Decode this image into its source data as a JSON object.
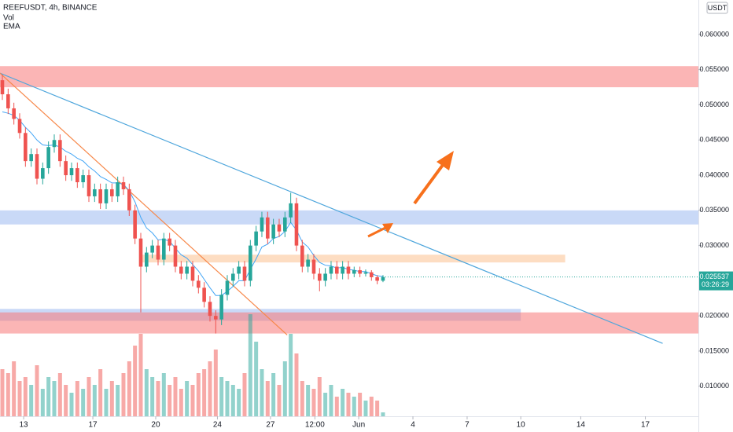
{
  "chart_data": {
    "type": "candlestick",
    "title": "REEFUSDT, 4h, BINANCE",
    "indicators": [
      "Vol",
      "EMA"
    ],
    "currency": "USDT",
    "countdown": "03:26:29",
    "up_color": "#26a69a",
    "down_color": "#ef5350",
    "ema_color": "#42a5f5",
    "open": [
      0.0535,
      0.0515,
      0.0495,
      0.048,
      0.046,
      0.042,
      0.043,
      0.0395,
      0.041,
      0.044,
      0.045,
      0.042,
      0.04,
      0.041,
      0.039,
      0.04,
      0.037,
      0.038,
      0.036,
      0.038,
      0.037,
      0.039,
      0.038,
      0.035,
      0.031,
      0.027,
      0.029,
      0.03,
      0.028,
      0.031,
      0.03,
      0.027,
      0.026,
      0.027,
      0.025,
      0.024,
      0.022,
      0.02,
      0.0195,
      0.023,
      0.025,
      0.026,
      0.027,
      0.025,
      0.03,
      0.032,
      0.034,
      0.031,
      0.033,
      0.032,
      0.034,
      0.036,
      0.03,
      0.027,
      0.028,
      0.026,
      0.025,
      0.026,
      0.027,
      0.026,
      0.027,
      0.026,
      0.0265,
      0.026,
      0.0262,
      0.0255,
      0.025
    ],
    "high": [
      0.0543,
      0.0523,
      0.0503,
      0.0488,
      0.0468,
      0.0438,
      0.0438,
      0.0418,
      0.0448,
      0.0458,
      0.0458,
      0.0428,
      0.0418,
      0.0418,
      0.0408,
      0.0408,
      0.0388,
      0.0388,
      0.0388,
      0.0388,
      0.0398,
      0.0398,
      0.0388,
      0.0358,
      0.0318,
      0.0298,
      0.0308,
      0.0308,
      0.0318,
      0.0318,
      0.0308,
      0.0278,
      0.0278,
      0.0278,
      0.0258,
      0.0248,
      0.0228,
      0.0208,
      0.0238,
      0.0258,
      0.0268,
      0.0278,
      0.0278,
      0.0308,
      0.0328,
      0.0348,
      0.0348,
      0.0338,
      0.0338,
      0.0348,
      0.0375,
      0.0368,
      0.0308,
      0.0288,
      0.0288,
      0.0268,
      0.0268,
      0.0278,
      0.0278,
      0.0278,
      0.0278,
      0.027,
      0.027,
      0.0266,
      0.0265,
      0.0258,
      0.0258
    ],
    "low": [
      0.0507,
      0.0487,
      0.0472,
      0.0452,
      0.0412,
      0.0412,
      0.0387,
      0.0387,
      0.0402,
      0.0432,
      0.0412,
      0.0392,
      0.0392,
      0.0382,
      0.0382,
      0.0362,
      0.0362,
      0.0352,
      0.0352,
      0.0362,
      0.0362,
      0.0372,
      0.0342,
      0.0302,
      0.0205,
      0.0262,
      0.0282,
      0.0272,
      0.0272,
      0.0292,
      0.0262,
      0.0252,
      0.0252,
      0.0242,
      0.0232,
      0.0212,
      0.0192,
      0.0175,
      0.0187,
      0.0222,
      0.0242,
      0.0252,
      0.0242,
      0.0242,
      0.0292,
      0.0312,
      0.0302,
      0.0302,
      0.0312,
      0.0312,
      0.0332,
      0.0292,
      0.0262,
      0.0262,
      0.0252,
      0.0235,
      0.0242,
      0.0252,
      0.0252,
      0.0252,
      0.0252,
      0.0255,
      0.0255,
      0.0256,
      0.025,
      0.0245,
      0.0248
    ],
    "close": [
      0.0515,
      0.0495,
      0.048,
      0.046,
      0.042,
      0.043,
      0.0395,
      0.041,
      0.044,
      0.045,
      0.042,
      0.04,
      0.041,
      0.039,
      0.04,
      0.037,
      0.038,
      0.036,
      0.038,
      0.037,
      0.039,
      0.038,
      0.035,
      0.031,
      0.027,
      0.029,
      0.03,
      0.028,
      0.031,
      0.03,
      0.027,
      0.026,
      0.027,
      0.025,
      0.024,
      0.022,
      0.02,
      0.0195,
      0.023,
      0.025,
      0.026,
      0.027,
      0.025,
      0.03,
      0.032,
      0.034,
      0.031,
      0.033,
      0.032,
      0.034,
      0.036,
      0.03,
      0.027,
      0.028,
      0.026,
      0.025,
      0.026,
      0.027,
      0.026,
      0.027,
      0.026,
      0.0265,
      0.026,
      0.0262,
      0.0255,
      0.025,
      0.025537
    ],
    "ema": [
      0.049,
      0.0488,
      0.0485,
      0.0478,
      0.0468,
      0.046,
      0.045,
      0.0443,
      0.0442,
      0.0443,
      0.044,
      0.0434,
      0.043,
      0.0424,
      0.042,
      0.0412,
      0.0406,
      0.0398,
      0.0394,
      0.0389,
      0.0389,
      0.0387,
      0.0378,
      0.0362,
      0.034,
      0.0325,
      0.0318,
      0.0308,
      0.0309,
      0.0306,
      0.0296,
      0.0287,
      0.0282,
      0.0273,
      0.0264,
      0.0252,
      0.024,
      0.0229,
      0.0229,
      0.0235,
      0.0242,
      0.025,
      0.025,
      0.0266,
      0.0281,
      0.0298,
      0.0302,
      0.031,
      0.0313,
      0.032,
      0.0333,
      0.0322,
      0.0305,
      0.0298,
      0.0286,
      0.0276,
      0.0272,
      0.0271,
      0.0268,
      0.0269,
      0.0266,
      0.0265,
      0.0263,
      0.0263,
      0.026,
      0.0257,
      0.0256
    ],
    "volume": [
      60,
      55,
      70,
      45,
      50,
      40,
      65,
      35,
      50,
      45,
      55,
      40,
      30,
      45,
      35,
      50,
      40,
      60,
      35,
      45,
      40,
      55,
      70,
      90,
      105,
      60,
      50,
      45,
      55,
      40,
      50,
      35,
      45,
      40,
      55,
      60,
      70,
      85,
      50,
      45,
      40,
      35,
      55,
      130,
      95,
      60,
      45,
      55,
      40,
      70,
      105,
      80,
      45,
      40,
      35,
      50,
      30,
      40,
      25,
      35,
      30,
      25,
      30,
      20,
      25,
      20,
      5
    ],
    "vlim": [
      0,
      530
    ],
    "xlim": [
      0,
      121.1
    ],
    "ylim": [
      0.0035,
      0.0649
    ],
    "yticks": [
      {
        "value": 0.06,
        "label": "0.060000"
      },
      {
        "value": 0.055,
        "label": "0.055000"
      },
      {
        "value": 0.05,
        "label": "0.050000"
      },
      {
        "value": 0.045,
        "label": "0.045000"
      },
      {
        "value": 0.04,
        "label": "0.040000"
      },
      {
        "value": 0.035,
        "label": "0.035000"
      },
      {
        "value": 0.03,
        "label": "0.030000"
      },
      {
        "value": 0.02,
        "label": "0.020000"
      },
      {
        "value": 0.015,
        "label": "0.015000"
      },
      {
        "value": 0.01,
        "label": "0.010000"
      }
    ],
    "xticks": [
      {
        "value": 4.1,
        "label": "13"
      },
      {
        "value": 16.1,
        "label": "17"
      },
      {
        "value": 27.0,
        "label": "20"
      },
      {
        "value": 37.7,
        "label": "24"
      },
      {
        "value": 46.9,
        "label": "27"
      },
      {
        "value": 54.6,
        "label": "12:00"
      },
      {
        "value": 62.2,
        "label": "Jun"
      },
      {
        "value": 71.6,
        "label": "4"
      },
      {
        "value": 81.0,
        "label": "7"
      },
      {
        "value": 90.3,
        "label": "10"
      },
      {
        "value": 100.7,
        "label": "14"
      },
      {
        "value": 111.9,
        "label": "17"
      }
    ],
    "zones": [
      {
        "from": 0.0555,
        "to": 0.0525,
        "x": [
          0,
          121.1
        ],
        "color": "rgba(247,120,120,0.55)"
      },
      {
        "from": 0.035,
        "to": 0.033,
        "x": [
          0,
          121.1
        ],
        "color": "rgba(120,160,235,0.4)"
      },
      {
        "from": 0.0287,
        "to": 0.0276,
        "x": [
          24.6,
          98.0
        ],
        "color": "rgba(250,180,120,0.45)"
      },
      {
        "from": 0.021,
        "to": 0.0193,
        "x": [
          0,
          90.3
        ],
        "color": "rgba(120,160,235,0.4)"
      },
      {
        "from": 0.0205,
        "to": 0.0175,
        "x": [
          0,
          121.1
        ],
        "color": "rgba(247,120,120,0.55)"
      }
    ],
    "lines": [
      {
        "x": [
          0,
          114.9
        ],
        "y": [
          0.0545,
          0.0161
        ],
        "color": "#4ea6dc"
      },
      {
        "x": [
          0,
          49.8
        ],
        "y": [
          0.0545,
          0.0173
        ],
        "color": "#f7884a"
      }
    ]
  }
}
